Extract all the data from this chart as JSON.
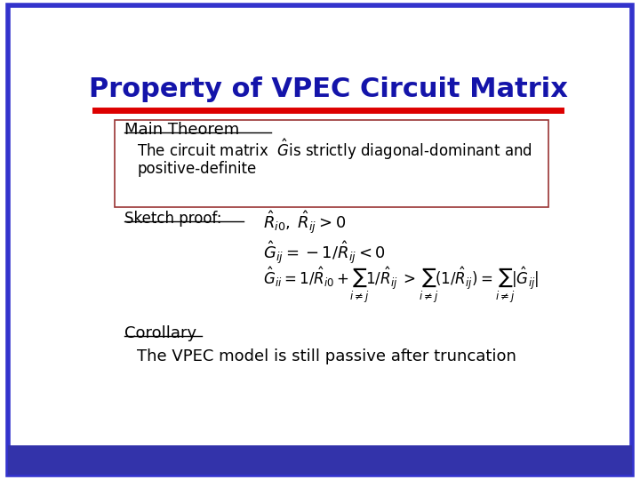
{
  "title": "Property of VPEC Circuit Matrix",
  "title_color": "#1414AA",
  "title_fontsize": 22,
  "bg_color": "#FFFFFF",
  "border_color": "#3333CC",
  "red_line_color": "#DD0000",
  "main_theorem_label": "Main Theorem",
  "corollary_label": "Corollary",
  "corollary_text": "The VPEC model is still passive after truncation",
  "text_color": "#000000",
  "box_border_color": "#993333",
  "footer_color": "#3333AA"
}
